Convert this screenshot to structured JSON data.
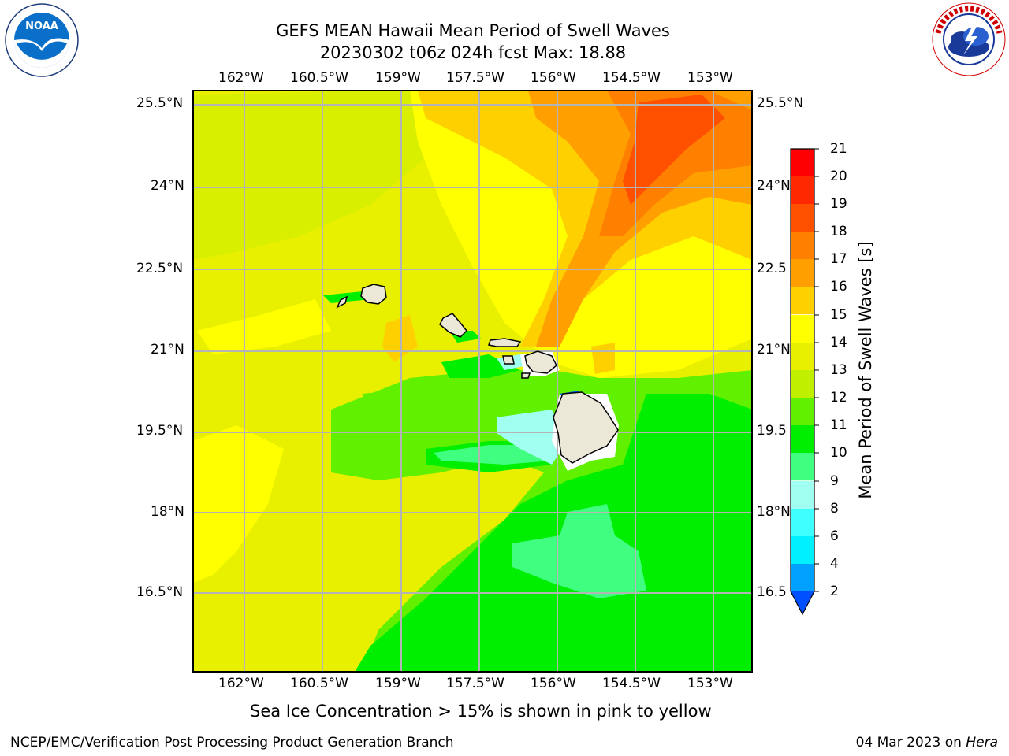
{
  "header": {
    "title_line1": "GEFS MEAN Hawaii Mean Period of Swell Waves",
    "title_line2": "20230302 t06z 024h fcst   Max: 18.88"
  },
  "logos": {
    "noaa": {
      "text": "NOAA",
      "ring_text": "NATIONAL OCEANIC AND ATMOSPHERIC ADMINISTRATION · U.S. DEPARTMENT OF COMMERCE",
      "icon": "noaa-logo-icon"
    },
    "nws": {
      "ring_text": "NATIONAL WEATHER SERVICE",
      "icon": "nws-logo-icon"
    }
  },
  "map": {
    "lon_labels": [
      "162°W",
      "160.5°W",
      "159°W",
      "157.5°W",
      "156°W",
      "154.5°W",
      "153°W"
    ],
    "lat_labels": [
      "25.5°N",
      "24°N",
      "22.5°N",
      "21°N",
      "19.5°N",
      "18°N",
      "16.5°N"
    ],
    "right_lat_labels": [
      "25.5°N",
      "24°N",
      "22.5",
      "21°N",
      "19.5",
      "18°N",
      "16.5"
    ]
  },
  "colorbar": {
    "label": "Mean Period of Swell Waves [s]",
    "ticks": [
      "21",
      "20",
      "19",
      "18",
      "17",
      "16",
      "15",
      "14",
      "13",
      "12",
      "11",
      "10",
      "9",
      "8",
      "6",
      "4",
      "2"
    ],
    "colors": {
      "c2": "#0050ff",
      "c4": "#00a0ff",
      "c6": "#00f0ff",
      "c8": "#40ffff",
      "c9": "#a0fff0",
      "c10": "#40ff80",
      "c11": "#00ee00",
      "c12": "#60f000",
      "c13": "#c0f000",
      "c14": "#e8f000",
      "c15": "#ffff00",
      "c16": "#ffd000",
      "c17": "#ffa000",
      "c18": "#ff8000",
      "c19": "#ff5000",
      "c20": "#ff2800",
      "c21": "#ff0000"
    }
  },
  "caption": "Sea Ice Concentration > 15% is shown in pink to yellow",
  "footer": {
    "left": "NCEP/EMC/Verification Post Processing Product Generation Branch",
    "right_prefix": "04 Mar 2023 on ",
    "right_italic": "Hera"
  }
}
